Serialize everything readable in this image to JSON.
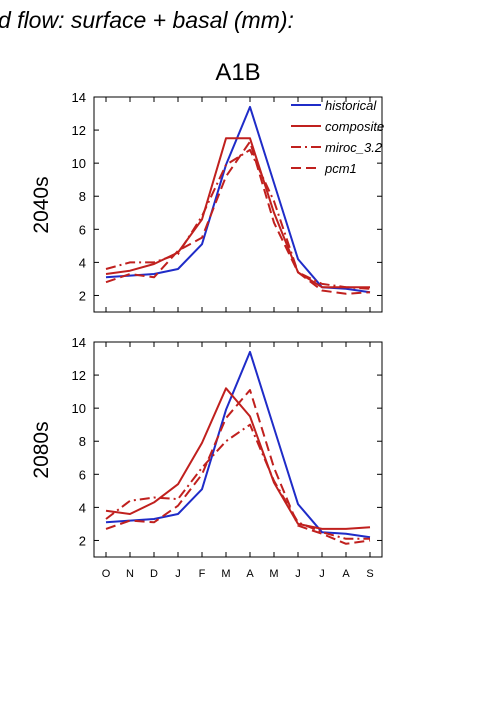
{
  "figure": {
    "title": "d flow: surface + basal (mm):",
    "scenario": "A1B"
  },
  "colors": {
    "historical": "#1f2cc8",
    "future": "#c0201e"
  },
  "chart_data": [
    {
      "type": "line",
      "panel_label": "2040s",
      "categories": [
        "O",
        "N",
        "D",
        "J",
        "F",
        "M",
        "A",
        "M",
        "J",
        "J",
        "A",
        "S"
      ],
      "ylim": [
        1,
        14
      ],
      "yticks": [
        2,
        4,
        6,
        8,
        10,
        12,
        14
      ],
      "legend": "top-right",
      "grid": false,
      "series": [
        {
          "name": "historical",
          "style": "solid",
          "values": [
            3.1,
            3.2,
            3.3,
            3.6,
            5.1,
            9.9,
            13.4,
            8.8,
            4.2,
            2.5,
            2.4,
            2.2
          ]
        },
        {
          "name": "composite",
          "style": "solid",
          "values": [
            3.3,
            3.5,
            3.9,
            4.6,
            6.6,
            11.5,
            11.5,
            7.0,
            3.4,
            2.5,
            2.5,
            2.5
          ]
        },
        {
          "name": "miroc_3.2",
          "style": "dashdot",
          "values": [
            3.6,
            4.0,
            4.0,
            4.5,
            6.8,
            9.9,
            10.8,
            7.7,
            3.4,
            2.7,
            2.5,
            2.4
          ]
        },
        {
          "name": "pcm1",
          "style": "dash",
          "values": [
            2.8,
            3.3,
            3.1,
            4.7,
            5.5,
            9.2,
            11.3,
            6.4,
            3.4,
            2.3,
            2.1,
            2.2
          ]
        }
      ]
    },
    {
      "type": "line",
      "panel_label": "2080s",
      "categories": [
        "O",
        "N",
        "D",
        "J",
        "F",
        "M",
        "A",
        "M",
        "J",
        "J",
        "A",
        "S"
      ],
      "ylim": [
        1,
        14
      ],
      "yticks": [
        2,
        4,
        6,
        8,
        10,
        12,
        14
      ],
      "legend": "none",
      "grid": false,
      "series": [
        {
          "name": "historical",
          "style": "solid",
          "values": [
            3.1,
            3.2,
            3.3,
            3.6,
            5.1,
            9.9,
            13.4,
            8.8,
            4.2,
            2.5,
            2.4,
            2.2
          ]
        },
        {
          "name": "composite",
          "style": "solid",
          "values": [
            3.8,
            3.6,
            4.3,
            5.4,
            7.9,
            11.2,
            9.5,
            5.5,
            3.0,
            2.7,
            2.7,
            2.8
          ]
        },
        {
          "name": "miroc_3.2",
          "style": "dashdot",
          "values": [
            3.3,
            4.4,
            4.6,
            4.5,
            6.4,
            8.0,
            9.0,
            5.6,
            3.1,
            2.5,
            2.1,
            2.1
          ]
        },
        {
          "name": "pcm1",
          "style": "dash",
          "values": [
            2.7,
            3.2,
            3.1,
            4.1,
            6.0,
            9.4,
            11.1,
            6.4,
            2.9,
            2.4,
            1.8,
            2.0
          ]
        }
      ]
    }
  ]
}
